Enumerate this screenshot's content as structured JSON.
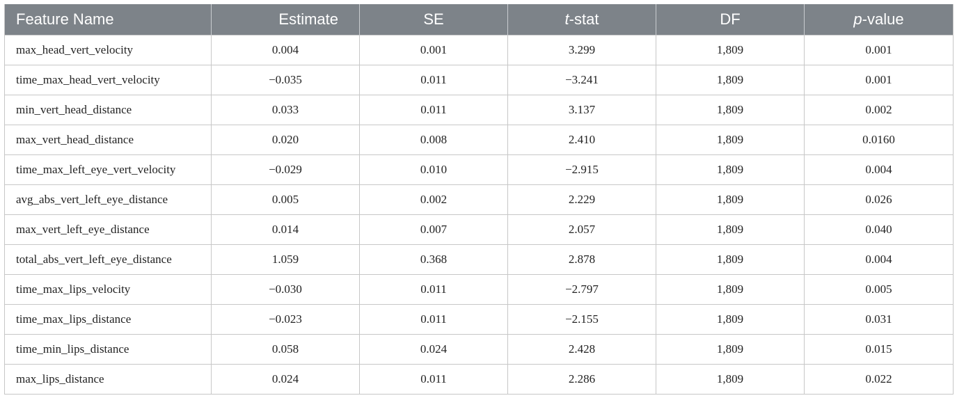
{
  "table": {
    "headers": [
      {
        "text": "Feature Name"
      },
      {
        "text": "Estimate"
      },
      {
        "text": "SE"
      },
      {
        "prefix": "t",
        "suffix": "-stat"
      },
      {
        "text": "DF"
      },
      {
        "prefix": "p",
        "suffix": "-value"
      }
    ],
    "rows": [
      [
        "max_head_vert_velocity",
        "0.004",
        "0.001",
        "3.299",
        "1,809",
        "0.001"
      ],
      [
        "time_max_head_vert_velocity",
        "−0.035",
        "0.011",
        "−3.241",
        "1,809",
        "0.001"
      ],
      [
        "min_vert_head_distance",
        "0.033",
        "0.011",
        "3.137",
        "1,809",
        "0.002"
      ],
      [
        "max_vert_head_distance",
        "0.020",
        "0.008",
        "2.410",
        "1,809",
        "0.0160"
      ],
      [
        "time_max_left_eye_vert_velocity",
        "−0.029",
        "0.010",
        "−2.915",
        "1,809",
        "0.004"
      ],
      [
        "avg_abs_vert_left_eye_distance",
        "0.005",
        "0.002",
        "2.229",
        "1,809",
        "0.026"
      ],
      [
        "max_vert_left_eye_distance",
        "0.014",
        "0.007",
        "2.057",
        "1,809",
        "0.040"
      ],
      [
        "total_abs_vert_left_eye_distance",
        "1.059",
        "0.368",
        "2.878",
        "1,809",
        "0.004"
      ],
      [
        "time_max_lips_velocity",
        "−0.030",
        "0.011",
        "−2.797",
        "1,809",
        "0.005"
      ],
      [
        "time_max_lips_distance",
        "−0.023",
        "0.011",
        "−2.155",
        "1,809",
        "0.031"
      ],
      [
        "time_min_lips_distance",
        "0.058",
        "0.024",
        "2.428",
        "1,809",
        "0.015"
      ],
      [
        "max_lips_distance",
        "0.024",
        "0.011",
        "2.286",
        "1,809",
        "0.022"
      ]
    ]
  },
  "colors": {
    "header_bg": "#7d8389",
    "header_text": "#ffffff",
    "cell_border": "#c7c7c7",
    "body_text": "#222222"
  }
}
